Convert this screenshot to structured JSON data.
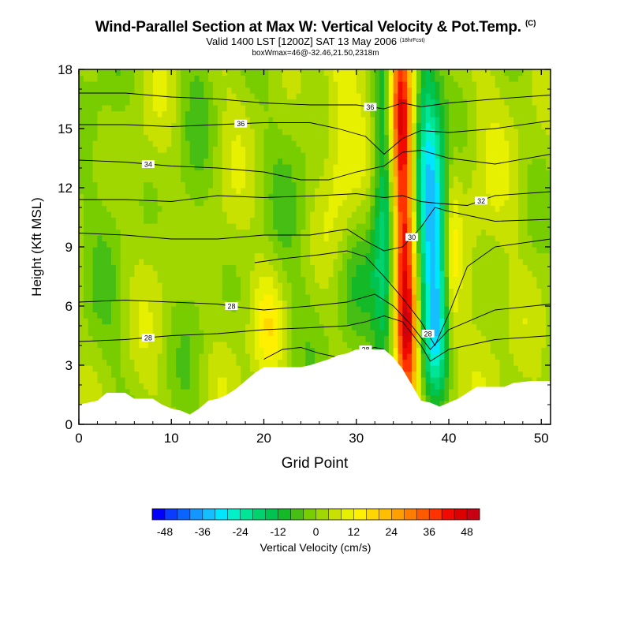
{
  "chart_data": {
    "type": "heatmap",
    "title": "Wind-Parallel Section at Max W: Vertical Velocity & Pot.Temp.",
    "title_mark": "(C)",
    "subtitle": "Valid 1400 LST [1200Z] SAT 13 May 2006",
    "subtitle_note": "(18hrFcst)",
    "box_line": "boxWmax=46@-32.46,21.50,2318m",
    "xlabel": "Grid Point",
    "ylabel": "Height (Kft MSL)",
    "xlim": [
      0,
      51
    ],
    "ylim": [
      0,
      18
    ],
    "x_ticks": [
      0,
      10,
      20,
      30,
      40,
      50
    ],
    "y_ticks": [
      0,
      3,
      6,
      9,
      12,
      15,
      18
    ],
    "colorbar": {
      "label": "Vertical Velocity (cm/s)",
      "tick_labels": [
        "-48",
        "-36",
        "-24",
        "-12",
        "0",
        "12",
        "24",
        "36",
        "48"
      ],
      "tick_values": [
        -48,
        -36,
        -24,
        -12,
        0,
        12,
        24,
        36,
        48
      ],
      "range": [
        -52,
        52
      ],
      "step": 4,
      "colors": [
        "#0000ff",
        "#0a3cff",
        "#0a64ff",
        "#1496ff",
        "#14beff",
        "#00e6ff",
        "#00f0c8",
        "#00e696",
        "#00d26e",
        "#00c350",
        "#14b928",
        "#46be14",
        "#78cd00",
        "#a0d700",
        "#c8e100",
        "#e6f000",
        "#fff000",
        "#ffd700",
        "#ffbe00",
        "#ffa000",
        "#ff7d00",
        "#ff5a00",
        "#ff3200",
        "#f00a00",
        "#dc0000",
        "#c80014"
      ]
    },
    "theta_contours": [
      {
        "value": 28,
        "label": "28",
        "points": [
          [
            0,
            4.2
          ],
          [
            5,
            4.3
          ],
          [
            10,
            4.5
          ],
          [
            15,
            4.6
          ],
          [
            20,
            4.8
          ],
          [
            25,
            4.9
          ],
          [
            29,
            5.0
          ],
          [
            31,
            5.2
          ],
          [
            33,
            5.5
          ],
          [
            35,
            5.2
          ],
          [
            37,
            4.0
          ],
          [
            38,
            3.2
          ],
          [
            40,
            3.8
          ],
          [
            45,
            4.3
          ],
          [
            51,
            4.5
          ]
        ]
      },
      {
        "value": 28,
        "label": "28",
        "points": [
          [
            0,
            6.2
          ],
          [
            5,
            6.3
          ],
          [
            10,
            6.2
          ],
          [
            15,
            6.1
          ],
          [
            18,
            5.9
          ],
          [
            20,
            5.8
          ],
          [
            25,
            6.0
          ],
          [
            29,
            6.2
          ],
          [
            32,
            6.6
          ],
          [
            34,
            6.0
          ],
          [
            36,
            5.0
          ],
          [
            38,
            3.8
          ],
          [
            40,
            4.8
          ],
          [
            45,
            5.8
          ],
          [
            51,
            6.1
          ]
        ]
      },
      {
        "value": 28,
        "label": "28",
        "points": [
          [
            20,
            3.3
          ],
          [
            22,
            3.8
          ],
          [
            24,
            3.9
          ],
          [
            26,
            3.6
          ],
          [
            28,
            3.4
          ],
          [
            30,
            3.7
          ],
          [
            32,
            3.9
          ],
          [
            33,
            3.8
          ]
        ]
      },
      {
        "value": 28,
        "label": "28",
        "points": [
          [
            19,
            8.2
          ],
          [
            22,
            8.4
          ],
          [
            26,
            8.6
          ],
          [
            29,
            8.8
          ],
          [
            31,
            8.5
          ],
          [
            33,
            7.5
          ],
          [
            35,
            6.4
          ],
          [
            37,
            5.2
          ],
          [
            38.5,
            4.0
          ],
          [
            40,
            5.6
          ],
          [
            42,
            8.0
          ],
          [
            45,
            9.0
          ],
          [
            51,
            9.4
          ]
        ]
      },
      {
        "value": 30,
        "label": "30",
        "points": [
          [
            0,
            9.7
          ],
          [
            5,
            9.6
          ],
          [
            10,
            9.4
          ],
          [
            15,
            9.4
          ],
          [
            20,
            9.6
          ],
          [
            25,
            9.6
          ],
          [
            29,
            9.9
          ],
          [
            31,
            9.3
          ],
          [
            33,
            8.8
          ],
          [
            35,
            9.0
          ],
          [
            37,
            10.0
          ],
          [
            38.5,
            11.0
          ],
          [
            40,
            10.8
          ],
          [
            45,
            10.3
          ],
          [
            51,
            10.4
          ]
        ]
      },
      {
        "value": 32,
        "label": "32",
        "points": [
          [
            0,
            11.4
          ],
          [
            5,
            11.4
          ],
          [
            10,
            11.3
          ],
          [
            15,
            11.6
          ],
          [
            20,
            11.5
          ],
          [
            26,
            11.6
          ],
          [
            30,
            11.7
          ],
          [
            33,
            11.5
          ],
          [
            35,
            11.6
          ],
          [
            37,
            11.3
          ],
          [
            39,
            11.2
          ],
          [
            42,
            11.1
          ],
          [
            45,
            11.6
          ],
          [
            51,
            11.8
          ]
        ]
      },
      {
        "value": 34,
        "label": "34",
        "points": [
          [
            0,
            13.4
          ],
          [
            5,
            13.3
          ],
          [
            10,
            13.1
          ],
          [
            15,
            13.0
          ],
          [
            20,
            12.8
          ],
          [
            24,
            12.4
          ],
          [
            27,
            12.4
          ],
          [
            30,
            12.8
          ],
          [
            33,
            13.1
          ],
          [
            35,
            13.8
          ],
          [
            37,
            13.9
          ],
          [
            40,
            13.5
          ],
          [
            45,
            13.2
          ],
          [
            51,
            13.7
          ]
        ]
      },
      {
        "value": 36,
        "label": "36",
        "points": [
          [
            0,
            15.2
          ],
          [
            5,
            15.2
          ],
          [
            10,
            15.1
          ],
          [
            15,
            15.2
          ],
          [
            20,
            15.3
          ],
          [
            25,
            15.3
          ],
          [
            28,
            15.0
          ],
          [
            31,
            14.6
          ],
          [
            33,
            13.7
          ],
          [
            35,
            14.5
          ],
          [
            37,
            14.9
          ],
          [
            40,
            14.8
          ],
          [
            45,
            15.0
          ],
          [
            51,
            15.4
          ]
        ]
      },
      {
        "value": 36,
        "label": "36",
        "points": [
          [
            0,
            16.8
          ],
          [
            5,
            16.8
          ],
          [
            10,
            16.6
          ],
          [
            15,
            16.5
          ],
          [
            20,
            16.3
          ],
          [
            25,
            16.2
          ],
          [
            30,
            16.2
          ],
          [
            33,
            16.0
          ],
          [
            35,
            16.3
          ],
          [
            37,
            16.1
          ],
          [
            40,
            16.3
          ],
          [
            45,
            16.5
          ],
          [
            51,
            16.7
          ]
        ]
      }
    ],
    "terrain": [
      [
        0,
        1.0
      ],
      [
        2,
        1.2
      ],
      [
        3,
        1.6
      ],
      [
        5,
        1.6
      ],
      [
        6,
        1.3
      ],
      [
        8,
        1.3
      ],
      [
        9,
        1.0
      ],
      [
        10,
        0.8
      ],
      [
        11,
        0.7
      ],
      [
        12,
        0.5
      ],
      [
        13,
        0.8
      ],
      [
        14,
        1.2
      ],
      [
        15,
        1.3
      ],
      [
        16,
        1.5
      ],
      [
        17,
        1.8
      ],
      [
        18,
        2.2
      ],
      [
        19,
        2.6
      ],
      [
        20,
        2.9
      ],
      [
        22,
        2.9
      ],
      [
        24,
        2.9
      ],
      [
        25,
        3.0
      ],
      [
        27,
        3.3
      ],
      [
        28,
        3.5
      ],
      [
        29,
        3.6
      ],
      [
        30,
        3.8
      ],
      [
        33,
        3.8
      ],
      [
        34,
        3.4
      ],
      [
        35,
        2.8
      ],
      [
        36,
        2.0
      ],
      [
        37,
        1.2
      ],
      [
        38,
        1.1
      ],
      [
        39,
        0.9
      ],
      [
        40,
        1.1
      ],
      [
        41,
        1.3
      ],
      [
        42,
        1.6
      ],
      [
        43,
        1.9
      ],
      [
        46,
        1.9
      ],
      [
        47,
        2.1
      ],
      [
        49,
        2.2
      ],
      [
        51,
        2.2
      ]
    ]
  }
}
